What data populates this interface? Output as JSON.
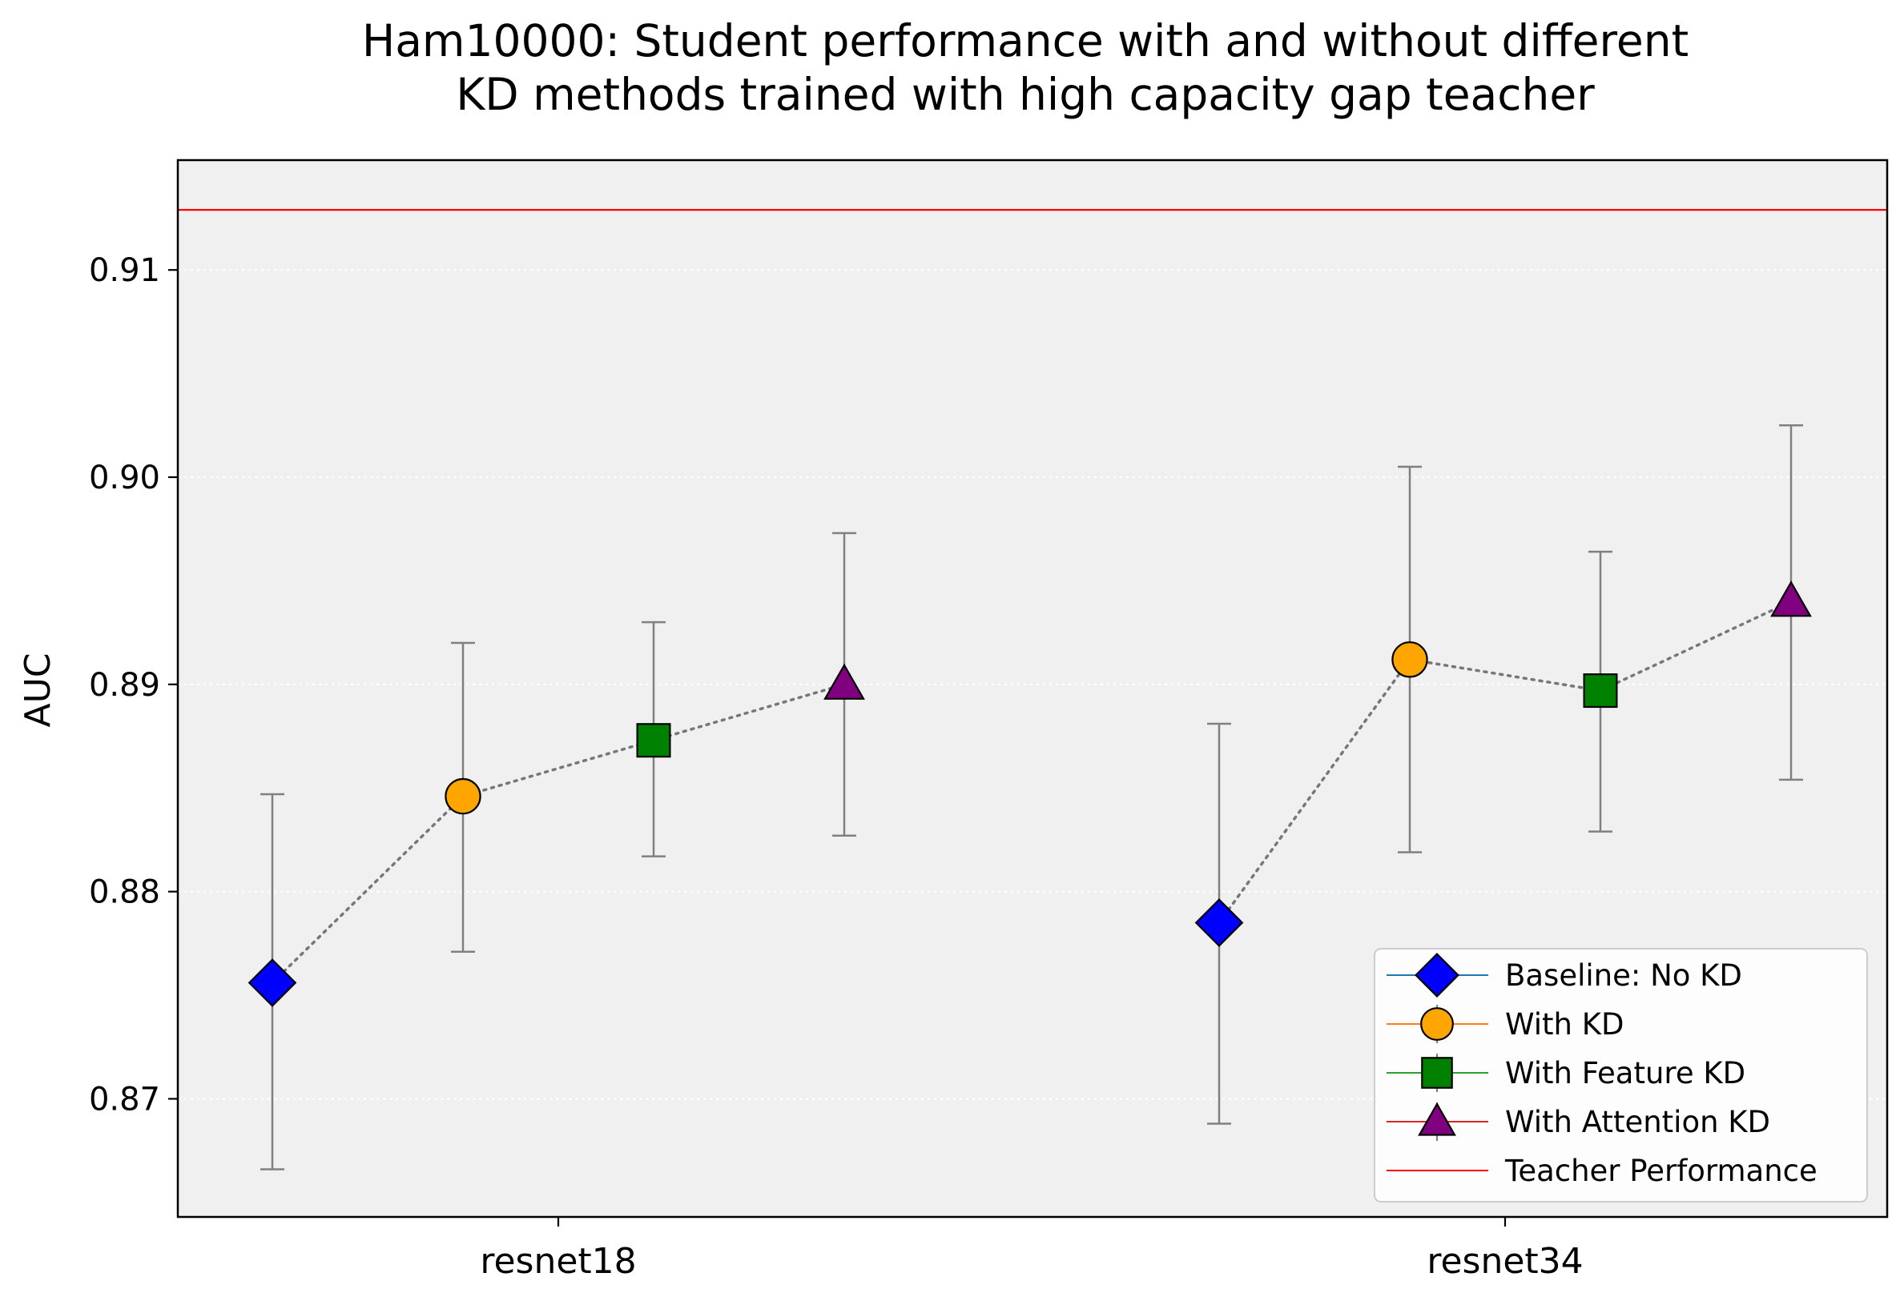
{
  "chart_data": {
    "type": "scatter",
    "title_lines": [
      "Ham10000: Student performance with and without different",
      "KD methods trained with high capacity gap teacher"
    ],
    "xlabel": "",
    "ylabel": "AUC",
    "categories": [
      "resnet18",
      "resnet34"
    ],
    "ylim": [
      0.8643,
      0.9153
    ],
    "yticks": [
      0.87,
      0.88,
      0.89,
      0.9,
      0.91
    ],
    "ytick_labels": [
      "0.87",
      "0.88",
      "0.89",
      "0.90",
      "0.91"
    ],
    "grid": "horizontal-dotted",
    "background": "#f0f0f0",
    "legend_position": "lower-right",
    "series": [
      {
        "name": "Baseline: No KD",
        "marker": "diamond",
        "color": "#0000ff",
        "line_color": "#1f77b4",
        "values": [
          0.8756,
          0.8785
        ],
        "error_low": [
          0.8666,
          0.8688
        ],
        "error_high": [
          0.8847,
          0.8881
        ]
      },
      {
        "name": "With KD",
        "marker": "circle",
        "color": "#ffa500",
        "line_color": "#ff7f0e",
        "values": [
          0.8846,
          0.8912
        ],
        "error_low": [
          0.8771,
          0.8819
        ],
        "error_high": [
          0.892,
          0.9005
        ]
      },
      {
        "name": "With Feature KD",
        "marker": "square",
        "color": "#008000",
        "line_color": "#2ca02c",
        "values": [
          0.8873,
          0.8897
        ],
        "error_low": [
          0.8817,
          0.8829
        ],
        "error_high": [
          0.893,
          0.8964
        ]
      },
      {
        "name": "With Attention KD",
        "marker": "triangle",
        "color": "#800080",
        "line_color": "#d62728",
        "values": [
          0.89,
          0.894
        ],
        "error_low": [
          0.8827,
          0.8854
        ],
        "error_high": [
          0.8973,
          0.9025
        ]
      }
    ],
    "reference_line": {
      "name": "Teacher Performance",
      "value": 0.9129,
      "color": "#ff0000"
    }
  }
}
